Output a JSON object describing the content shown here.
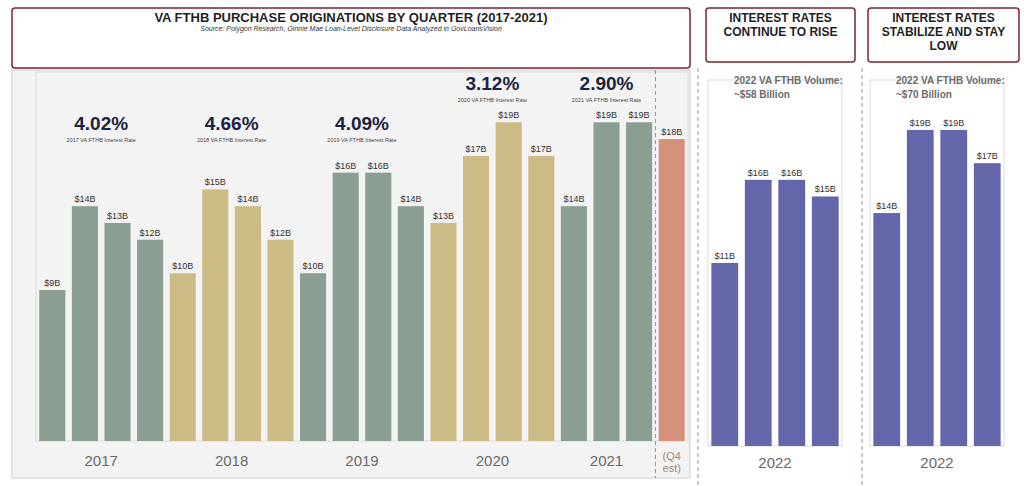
{
  "chart_data": [
    {
      "type": "bar",
      "title": "VA FTHB PURCHASE ORIGINATIONS BY QUARTER (2017-2021)",
      "subtitle": "Source: Polygon Research, Ginnie Mae Loan-Level Disclosure Data Analyzed in GovLoansVision",
      "groups": [
        {
          "label": "2017",
          "values": [
            9,
            14,
            13,
            12
          ],
          "value_labels": [
            "$9B",
            "$14B",
            "$13B",
            "$12B"
          ],
          "color": "#8a9e92",
          "annotation": {
            "text": "4.02%",
            "caption": "2017 VA FTHB Interest Rate"
          }
        },
        {
          "label": "2018",
          "values": [
            10,
            15,
            14,
            12
          ],
          "value_labels": [
            "$10B",
            "$15B",
            "$14B",
            "$12B"
          ],
          "color": "#cdbb86",
          "annotation": {
            "text": "4.66%",
            "caption": "2018 VA FTHB Interest Rate"
          }
        },
        {
          "label": "2019",
          "values": [
            10,
            16,
            16,
            14
          ],
          "value_labels": [
            "$10B",
            "$16B",
            "$16B",
            "$14B"
          ],
          "color": "#8a9e92",
          "annotation": {
            "text": "4.09%",
            "caption": "2019 VA FTHB Interest Rate"
          }
        },
        {
          "label": "2020",
          "values": [
            13,
            17,
            19,
            17
          ],
          "value_labels": [
            "$13B",
            "$17B",
            "$19B",
            "$17B"
          ],
          "color": "#cdbb86",
          "annotation": {
            "text": "3.12%",
            "caption": "2020 VA FTHB Interest Rate"
          }
        },
        {
          "label": "2021",
          "values": [
            14,
            19,
            19
          ],
          "value_labels": [
            "$14B",
            "$19B",
            "$19B"
          ],
          "color": "#8a9e92",
          "annotation": {
            "text": "2.90%",
            "caption": "2021 VA FTHB Interest Rate"
          }
        },
        {
          "label": "(Q4 est)",
          "values": [
            18
          ],
          "value_labels": [
            "$18B"
          ],
          "color": "#d4917c"
        }
      ],
      "data_labels": true,
      "ylim": [
        0,
        22
      ],
      "yticks": [],
      "tick_labels": false
    },
    {
      "type": "bar",
      "title": "INTEREST RATES CONTINUE TO RISE",
      "subtitle": [
        "2022 VA FTHB Volume:",
        "~$58 Billion"
      ],
      "groups": [
        {
          "label": "2022",
          "values": [
            11,
            16,
            16,
            15
          ],
          "value_labels": [
            "$11B",
            "$16B",
            "$16B",
            "$15B"
          ],
          "color": "#6366a8"
        }
      ],
      "data_labels": true,
      "ylim": [
        0,
        22
      ],
      "yticks": [],
      "tick_labels": false
    },
    {
      "type": "bar",
      "title": "INTEREST RATES STABILIZE AND STAY LOW",
      "subtitle": [
        "2022 VA FTHB Volume:",
        "~$70 Billion"
      ],
      "groups": [
        {
          "label": "2022",
          "values": [
            14,
            19,
            19,
            17
          ],
          "value_labels": [
            "$14B",
            "$19B",
            "$19B",
            "$17B"
          ],
          "color": "#6366a8"
        }
      ],
      "data_labels": true,
      "ylim": [
        0,
        22
      ],
      "yticks": [],
      "tick_labels": false
    }
  ]
}
